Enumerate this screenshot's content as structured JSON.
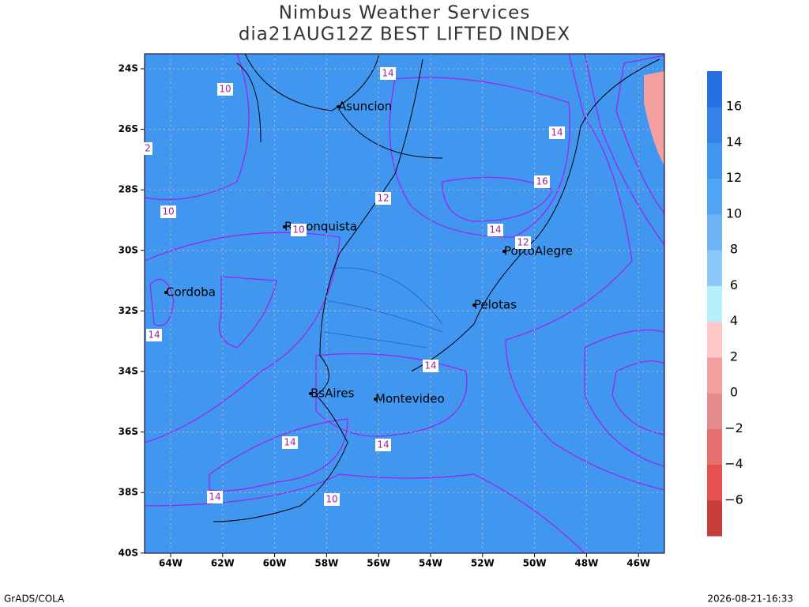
{
  "header": {
    "title": "Nimbus Weather Services",
    "subtitle": "dia21AUG12Z BEST LIFTED INDEX"
  },
  "map": {
    "lat_labels": [
      "24S",
      "26S",
      "28S",
      "30S",
      "32S",
      "34S",
      "36S",
      "38S",
      "40S"
    ],
    "lon_labels": [
      "64W",
      "62W",
      "60W",
      "58W",
      "56W",
      "54W",
      "52W",
      "50W",
      "48W",
      "46W"
    ],
    "cities": [
      "Asuncion",
      "Reconquista",
      "PortoAlegre",
      "Cordoba",
      "Pelotas",
      "BsAires",
      "Montevideo"
    ],
    "contour_labels": [
      "14",
      "10",
      "2",
      "14",
      "16",
      "12",
      "10",
      "10",
      "14",
      "12",
      "14",
      "14",
      "14",
      "14",
      "14",
      "10"
    ]
  },
  "colorbar": {
    "colors": [
      "#c83c3c",
      "#e65050",
      "#e67070",
      "#e68c8c",
      "#f5a0a0",
      "#ffc8c8",
      "#b4f0fa",
      "#8cc8fa",
      "#6eb4f8",
      "#50a5f5",
      "#4196f0",
      "#3282ea",
      "#2670e6"
    ],
    "labels": [
      "−6",
      "−4",
      "−2",
      "0",
      "2",
      "4",
      "6",
      "8",
      "10",
      "12",
      "14",
      "16"
    ]
  },
  "footer": {
    "left": "GrADS/COLA",
    "right": "2026-08-21-16:33"
  }
}
